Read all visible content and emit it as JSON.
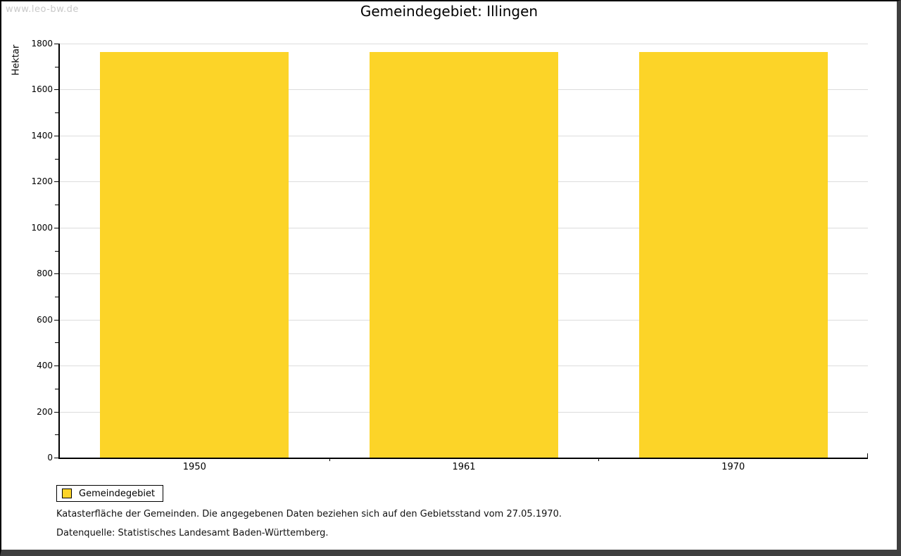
{
  "watermark": "www.leo-bw.de",
  "title": "Gemeindegebiet: Illingen",
  "chart_data": {
    "type": "bar",
    "title": "Gemeindegebiet: Illingen",
    "categories": [
      "1950",
      "1961",
      "1970"
    ],
    "series": [
      {
        "name": "Gemeindegebiet",
        "values": [
          1764,
          1764,
          1764
        ]
      }
    ],
    "xlabel": "",
    "ylabel": "Hektar",
    "ylim": [
      0,
      1800
    ],
    "y_major_step": 200,
    "y_minor_step": 100,
    "y_major_ticks": [
      0,
      200,
      400,
      600,
      800,
      1000,
      1200,
      1400,
      1600,
      1800
    ],
    "grid": true,
    "legend_position": "bottom-left",
    "bar_color": "#fcd428"
  },
  "legend": {
    "items": [
      {
        "label": "Gemeindegebiet",
        "color": "#fcd428"
      }
    ]
  },
  "footnotes": [
    "Katasterfläche der Gemeinden. Die angegebenen Daten beziehen sich auf den Gebietsstand vom 27.05.1970.",
    "Datenquelle: Statistisches Landesamt Baden-Württemberg."
  ],
  "colors": {
    "bar": "#fcd428",
    "gridline": "#dcdcdc",
    "axis": "#000000",
    "frame_shadow": "#3f3f3f",
    "watermark": "#c9c9c9",
    "text": "#000000"
  }
}
